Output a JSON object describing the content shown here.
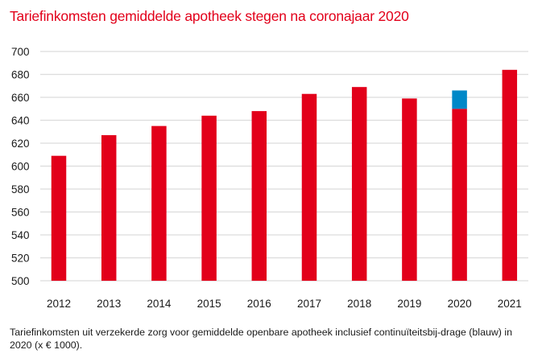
{
  "chart_data": {
    "type": "bar",
    "title": "Tariefinkomsten gemiddelde apotheek stegen na coronajaar 2020",
    "xlabel": "",
    "ylabel": "",
    "categories": [
      "2012",
      "2013",
      "2014",
      "2015",
      "2016",
      "2017",
      "2018",
      "2019",
      "2020",
      "2021"
    ],
    "series": [
      {
        "name": "Tariefinkomsten",
        "color": "#e2001a",
        "values": [
          609,
          627,
          635,
          644,
          648,
          663,
          669,
          659,
          650,
          684
        ]
      },
      {
        "name": "Continuïteitsbijdrage",
        "color": "#0088c8",
        "values": [
          0,
          0,
          0,
          0,
          0,
          0,
          0,
          0,
          16,
          0
        ]
      }
    ],
    "stacked": true,
    "ylim": [
      500,
      700
    ],
    "yticks": [
      "500",
      "520",
      "540",
      "560",
      "580",
      "600",
      "620",
      "640",
      "660",
      "680",
      "700"
    ],
    "grid": true,
    "legend": "none"
  },
  "caption": "Tariefinkomsten uit verzekerde zorg voor gemiddelde openbare apotheek inclusief continuïteitsbij-drage (blauw) in 2020 (x € 1000)."
}
